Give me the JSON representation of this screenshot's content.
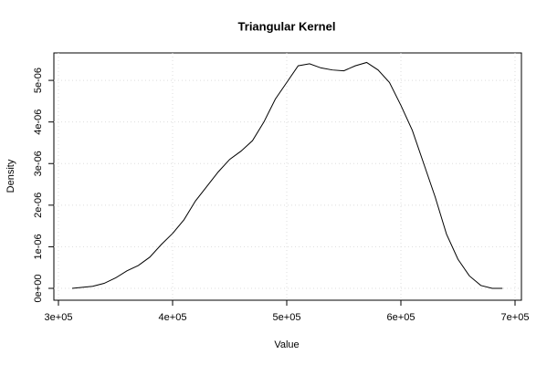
{
  "chart_data": {
    "type": "line",
    "title": "Triangular Kernel",
    "x_label": "Value",
    "y_label": "Density",
    "x": [
      312000,
      330000,
      340000,
      350000,
      360000,
      370000,
      380000,
      390000,
      400000,
      410000,
      420000,
      430000,
      440000,
      450000,
      460000,
      470000,
      480000,
      490000,
      500000,
      510000,
      520000,
      530000,
      540000,
      550000,
      560000,
      570000,
      580000,
      590000,
      600000,
      610000,
      620000,
      630000,
      640000,
      650000,
      660000,
      670000,
      680000,
      689000
    ],
    "series": [
      {
        "name": "Density",
        "color": "#000000",
        "values": [
          0,
          5e-08,
          1.2e-07,
          2.5e-07,
          4.2e-07,
          5.5e-07,
          7.5e-07,
          1.05e-06,
          1.32e-06,
          1.65e-06,
          2.1e-06,
          2.45e-06,
          2.8e-06,
          3.1e-06,
          3.3e-06,
          3.55e-06,
          4e-06,
          4.55e-06,
          4.95e-06,
          5.35e-06,
          5.4e-06,
          5.3e-06,
          5.25e-06,
          5.23e-06,
          5.35e-06,
          5.43e-06,
          5.25e-06,
          4.95e-06,
          4.4e-06,
          3.8e-06,
          3e-06,
          2.2e-06,
          1.3e-06,
          7e-07,
          3e-07,
          7e-08,
          0,
          0
        ]
      }
    ],
    "xlim": [
      296000,
      705600
    ],
    "ylim": [
      -2.85e-07,
      5.66e-06
    ],
    "xticks": [
      {
        "value": 300000,
        "label": "3e+05"
      },
      {
        "value": 400000,
        "label": "4e+05"
      },
      {
        "value": 500000,
        "label": "5e+05"
      },
      {
        "value": 600000,
        "label": "6e+05"
      },
      {
        "value": 700000,
        "label": "7e+05"
      }
    ],
    "yticks": [
      {
        "value": 0,
        "label": "0e+00"
      },
      {
        "value": 1e-06,
        "label": "1e-06"
      },
      {
        "value": 2e-06,
        "label": "2e-06"
      },
      {
        "value": 3e-06,
        "label": "3e-06"
      },
      {
        "value": 4e-06,
        "label": "4e-06"
      },
      {
        "value": 5e-06,
        "label": "5e-06"
      }
    ],
    "grid": true
  }
}
